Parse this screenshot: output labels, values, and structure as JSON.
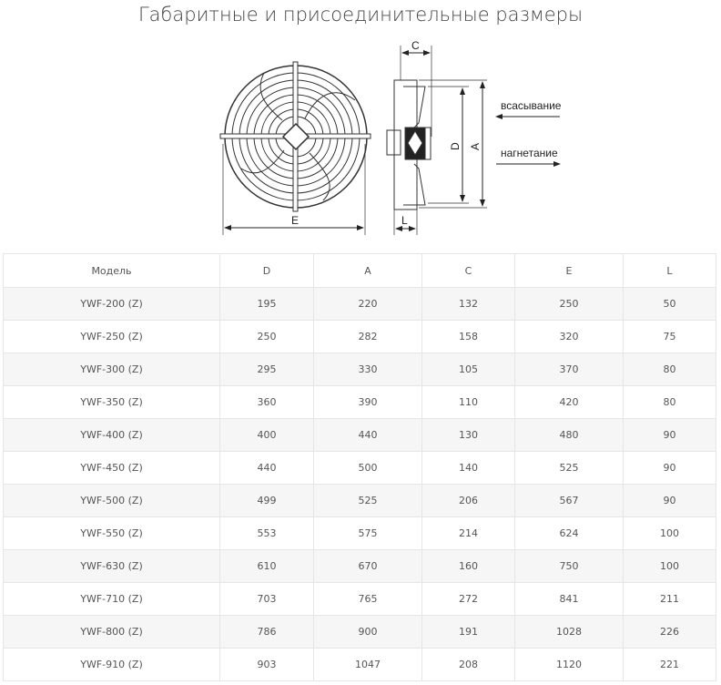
{
  "title": "Габаритные и присоединительные размеры",
  "diagram": {
    "labels": {
      "C": "C",
      "D": "D",
      "A": "A",
      "E": "E",
      "L": "L"
    },
    "suction": "всасывание",
    "discharge": "нагнетание"
  },
  "table": {
    "headers": [
      "Модель",
      "D",
      "A",
      "C",
      "E",
      "L"
    ],
    "rows": [
      [
        "YWF-200 (Z)",
        "195",
        "220",
        "132",
        "250",
        "50"
      ],
      [
        "YWF-250 (Z)",
        "250",
        "282",
        "158",
        "320",
        "75"
      ],
      [
        "YWF-300 (Z)",
        "295",
        "330",
        "105",
        "370",
        "80"
      ],
      [
        "YWF-350 (Z)",
        "360",
        "390",
        "110",
        "420",
        "80"
      ],
      [
        "YWF-400 (Z)",
        "400",
        "440",
        "130",
        "480",
        "90"
      ],
      [
        "YWF-450 (Z)",
        "440",
        "500",
        "140",
        "525",
        "90"
      ],
      [
        "YWF-500 (Z)",
        "499",
        "525",
        "206",
        "567",
        "90"
      ],
      [
        "YWF-550 (Z)",
        "553",
        "575",
        "214",
        "624",
        "100"
      ],
      [
        "YWF-630 (Z)",
        "610",
        "670",
        "160",
        "750",
        "100"
      ],
      [
        "YWF-710 (Z)",
        "703",
        "765",
        "272",
        "841",
        "211"
      ],
      [
        "YWF-800 (Z)",
        "786",
        "900",
        "191",
        "1028",
        "226"
      ],
      [
        "YWF-910 (Z)",
        "903",
        "1047",
        "208",
        "1120",
        "221"
      ]
    ]
  }
}
